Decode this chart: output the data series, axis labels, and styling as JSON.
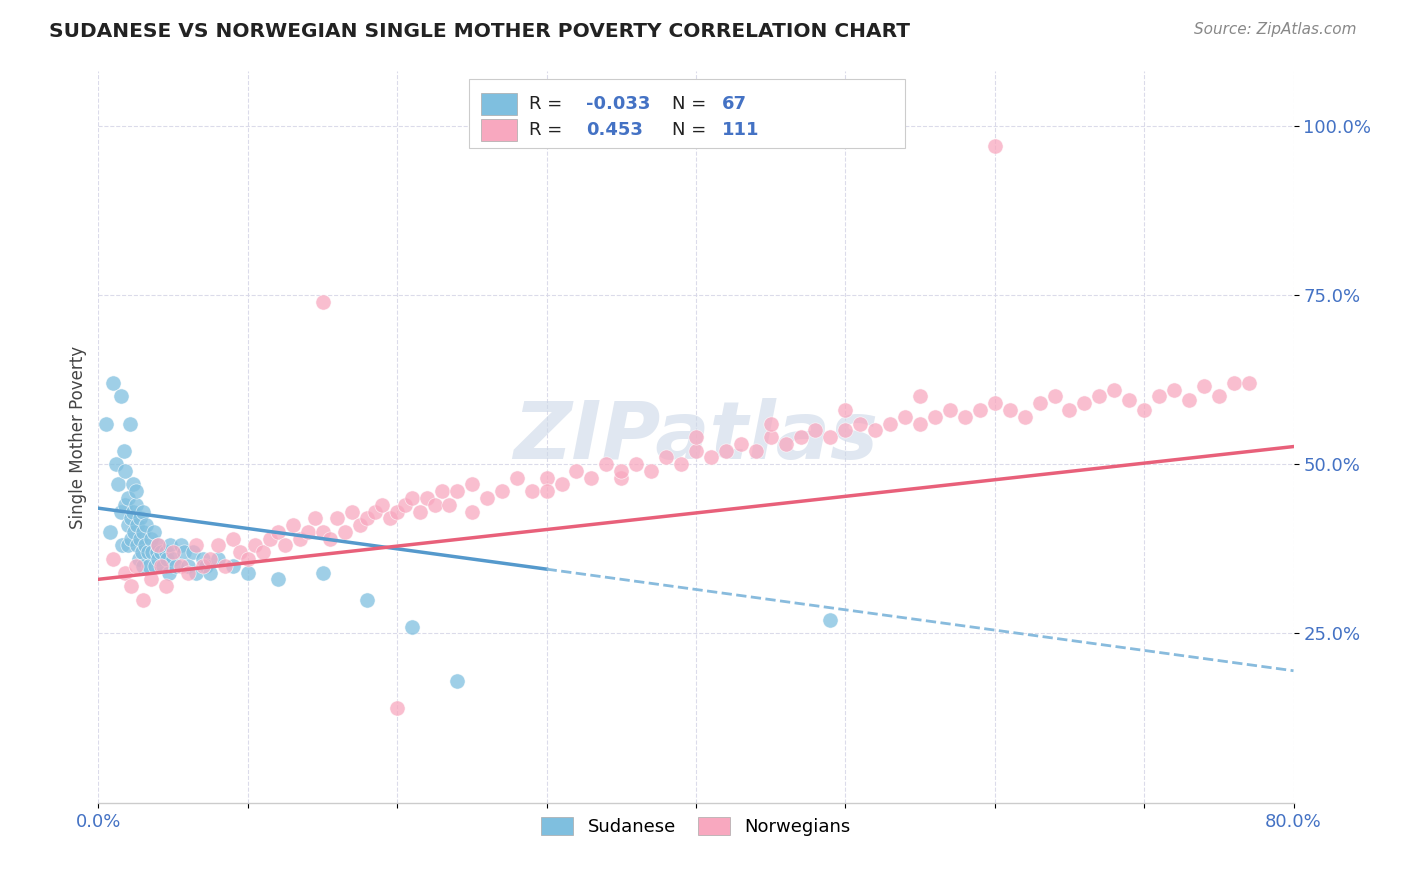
{
  "title": "SUDANESE VS NORWEGIAN SINGLE MOTHER POVERTY CORRELATION CHART",
  "source": "Source: ZipAtlas.com",
  "ylabel": "Single Mother Poverty",
  "ytick_values": [
    0.25,
    0.5,
    0.75,
    1.0
  ],
  "xmin": 0.0,
  "xmax": 0.8,
  "ymin": 0.0,
  "ymax": 1.08,
  "color_sudanese": "#7fbfdf",
  "color_norwegian": "#f8a8bf",
  "color_line_sudanese_solid": "#5599cc",
  "color_line_sudanese_dash": "#88bbdd",
  "color_line_norwegian": "#e8607a",
  "watermark_color": "#ccd8e8",
  "grid_color": "#d8d8e8",
  "sudanese_x": [
    0.005,
    0.008,
    0.01,
    0.012,
    0.013,
    0.015,
    0.015,
    0.016,
    0.017,
    0.018,
    0.018,
    0.02,
    0.02,
    0.02,
    0.021,
    0.022,
    0.022,
    0.023,
    0.023,
    0.024,
    0.025,
    0.025,
    0.026,
    0.026,
    0.027,
    0.028,
    0.028,
    0.029,
    0.03,
    0.03,
    0.03,
    0.031,
    0.032,
    0.033,
    0.034,
    0.035,
    0.036,
    0.037,
    0.038,
    0.039,
    0.04,
    0.04,
    0.042,
    0.043,
    0.045,
    0.046,
    0.047,
    0.048,
    0.05,
    0.052,
    0.055,
    0.057,
    0.06,
    0.063,
    0.065,
    0.07,
    0.072,
    0.075,
    0.08,
    0.09,
    0.1,
    0.12,
    0.15,
    0.18,
    0.21,
    0.24,
    0.49
  ],
  "sudanese_y": [
    0.56,
    0.4,
    0.62,
    0.5,
    0.47,
    0.43,
    0.6,
    0.38,
    0.52,
    0.44,
    0.49,
    0.41,
    0.45,
    0.38,
    0.56,
    0.42,
    0.39,
    0.47,
    0.43,
    0.4,
    0.44,
    0.46,
    0.38,
    0.41,
    0.36,
    0.42,
    0.39,
    0.37,
    0.4,
    0.43,
    0.35,
    0.38,
    0.41,
    0.37,
    0.35,
    0.39,
    0.37,
    0.4,
    0.35,
    0.37,
    0.38,
    0.36,
    0.37,
    0.35,
    0.37,
    0.36,
    0.34,
    0.38,
    0.36,
    0.35,
    0.38,
    0.37,
    0.35,
    0.37,
    0.34,
    0.36,
    0.35,
    0.34,
    0.36,
    0.35,
    0.34,
    0.33,
    0.34,
    0.3,
    0.26,
    0.18,
    0.27
  ],
  "norwegian_x": [
    0.01,
    0.018,
    0.022,
    0.025,
    0.03,
    0.035,
    0.04,
    0.042,
    0.045,
    0.05,
    0.055,
    0.06,
    0.065,
    0.07,
    0.075,
    0.08,
    0.085,
    0.09,
    0.095,
    0.1,
    0.105,
    0.11,
    0.115,
    0.12,
    0.125,
    0.13,
    0.135,
    0.14,
    0.145,
    0.15,
    0.155,
    0.16,
    0.165,
    0.17,
    0.175,
    0.18,
    0.185,
    0.19,
    0.195,
    0.2,
    0.205,
    0.21,
    0.215,
    0.22,
    0.225,
    0.23,
    0.235,
    0.24,
    0.25,
    0.26,
    0.27,
    0.28,
    0.29,
    0.3,
    0.31,
    0.32,
    0.33,
    0.34,
    0.35,
    0.36,
    0.37,
    0.38,
    0.39,
    0.4,
    0.41,
    0.42,
    0.43,
    0.44,
    0.45,
    0.46,
    0.47,
    0.48,
    0.49,
    0.5,
    0.51,
    0.52,
    0.53,
    0.54,
    0.55,
    0.56,
    0.57,
    0.58,
    0.59,
    0.6,
    0.61,
    0.62,
    0.63,
    0.64,
    0.65,
    0.66,
    0.67,
    0.68,
    0.69,
    0.7,
    0.71,
    0.72,
    0.73,
    0.74,
    0.75,
    0.76,
    0.77,
    0.4,
    0.35,
    0.45,
    0.5,
    0.3,
    0.25,
    0.55,
    0.2,
    0.6,
    0.15
  ],
  "norwegian_y": [
    0.36,
    0.34,
    0.32,
    0.35,
    0.3,
    0.33,
    0.38,
    0.35,
    0.32,
    0.37,
    0.35,
    0.34,
    0.38,
    0.35,
    0.36,
    0.38,
    0.35,
    0.39,
    0.37,
    0.36,
    0.38,
    0.37,
    0.39,
    0.4,
    0.38,
    0.41,
    0.39,
    0.4,
    0.42,
    0.4,
    0.39,
    0.42,
    0.4,
    0.43,
    0.41,
    0.42,
    0.43,
    0.44,
    0.42,
    0.43,
    0.44,
    0.45,
    0.43,
    0.45,
    0.44,
    0.46,
    0.44,
    0.46,
    0.47,
    0.45,
    0.46,
    0.48,
    0.46,
    0.48,
    0.47,
    0.49,
    0.48,
    0.5,
    0.48,
    0.5,
    0.49,
    0.51,
    0.5,
    0.52,
    0.51,
    0.52,
    0.53,
    0.52,
    0.54,
    0.53,
    0.54,
    0.55,
    0.54,
    0.55,
    0.56,
    0.55,
    0.56,
    0.57,
    0.56,
    0.57,
    0.58,
    0.57,
    0.58,
    0.59,
    0.58,
    0.57,
    0.59,
    0.6,
    0.58,
    0.59,
    0.6,
    0.61,
    0.595,
    0.58,
    0.6,
    0.61,
    0.595,
    0.615,
    0.6,
    0.62,
    0.62,
    0.54,
    0.49,
    0.56,
    0.58,
    0.46,
    0.43,
    0.6,
    0.14,
    0.97,
    0.74
  ]
}
